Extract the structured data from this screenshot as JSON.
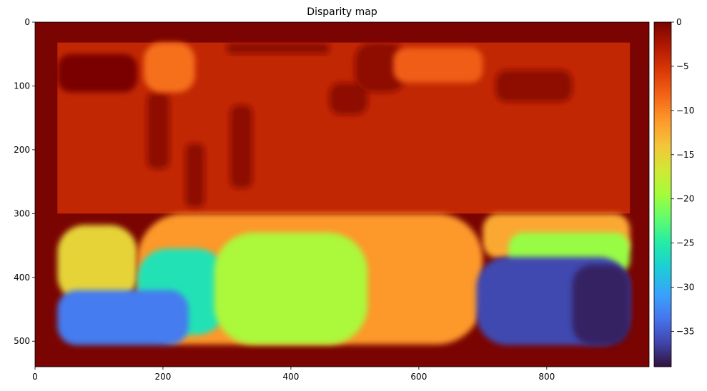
{
  "chart_data": {
    "type": "heatmap",
    "title": "Disparity map",
    "xlabel": "",
    "ylabel": "",
    "image_extent": {
      "x": [
        0,
        960
      ],
      "y": [
        540,
        0
      ]
    },
    "border_value": 0,
    "valid_region": {
      "x": [
        35,
        930
      ],
      "y": [
        32,
        506
      ]
    },
    "x_ticks": [
      0,
      200,
      400,
      600,
      800
    ],
    "y_ticks": [
      0,
      100,
      200,
      300,
      400,
      500
    ],
    "colormap": "turbo",
    "colorbar": {
      "range": [
        -39,
        0
      ],
      "ticks": [
        0,
        -5,
        -10,
        -15,
        -20,
        -25,
        -30,
        -35
      ]
    },
    "regions": [
      {
        "name": "upper-scene",
        "x": [
          35,
          930
        ],
        "y": [
          32,
          300
        ],
        "value": -4
      },
      {
        "name": "left-mid-band",
        "x": [
          35,
          160
        ],
        "y": [
          318,
          440
        ],
        "value": -15
      },
      {
        "name": "center-mid-band",
        "x": [
          160,
          700
        ],
        "y": [
          300,
          505
        ],
        "value": -11
      },
      {
        "name": "right-mid-band",
        "x": [
          700,
          930
        ],
        "y": [
          300,
          370
        ],
        "value": -12
      },
      {
        "name": "right-green-strip",
        "x": [
          740,
          930
        ],
        "y": [
          330,
          395
        ],
        "value": -20
      },
      {
        "name": "center-left-teal",
        "x": [
          160,
          300
        ],
        "y": [
          355,
          490
        ],
        "value": -26
      },
      {
        "name": "center-green-blob",
        "x": [
          280,
          520
        ],
        "y": [
          330,
          505
        ],
        "value": -19
      },
      {
        "name": "bottom-left-blue",
        "x": [
          35,
          240
        ],
        "y": [
          420,
          506
        ],
        "value": -33
      },
      {
        "name": "bottom-right-blue",
        "x": [
          690,
          930
        ],
        "y": [
          368,
          506
        ],
        "value": -36
      },
      {
        "name": "bottom-right-dark",
        "x": [
          840,
          930
        ],
        "y": [
          380,
          506
        ],
        "value": -38
      },
      {
        "name": "upper-blob-1",
        "x": [
          35,
          160
        ],
        "y": [
          50,
          110
        ],
        "value": 0
      },
      {
        "name": "upper-blob-2",
        "x": [
          460,
          520
        ],
        "y": [
          95,
          145
        ],
        "value": -1
      },
      {
        "name": "upper-blob-3",
        "x": [
          500,
          580
        ],
        "y": [
          32,
          110
        ],
        "value": -1
      },
      {
        "name": "upper-blob-4",
        "x": [
          720,
          840
        ],
        "y": [
          75,
          125
        ],
        "value": -1
      },
      {
        "name": "pillar-left",
        "x": [
          175,
          210
        ],
        "y": [
          110,
          230
        ],
        "value": -1
      },
      {
        "name": "pillar-center",
        "x": [
          235,
          265
        ],
        "y": [
          190,
          290
        ],
        "value": -1
      },
      {
        "name": "pillar-right",
        "x": [
          305,
          340
        ],
        "y": [
          130,
          260
        ],
        "value": -1
      },
      {
        "name": "top-strip",
        "x": [
          300,
          460
        ],
        "y": [
          32,
          50
        ],
        "value": -1
      },
      {
        "name": "orange-top-blob",
        "x": [
          170,
          250
        ],
        "y": [
          32,
          110
        ],
        "value": -9
      },
      {
        "name": "orange-right-blob",
        "x": [
          560,
          700
        ],
        "y": [
          40,
          95
        ],
        "value": -8
      }
    ]
  }
}
